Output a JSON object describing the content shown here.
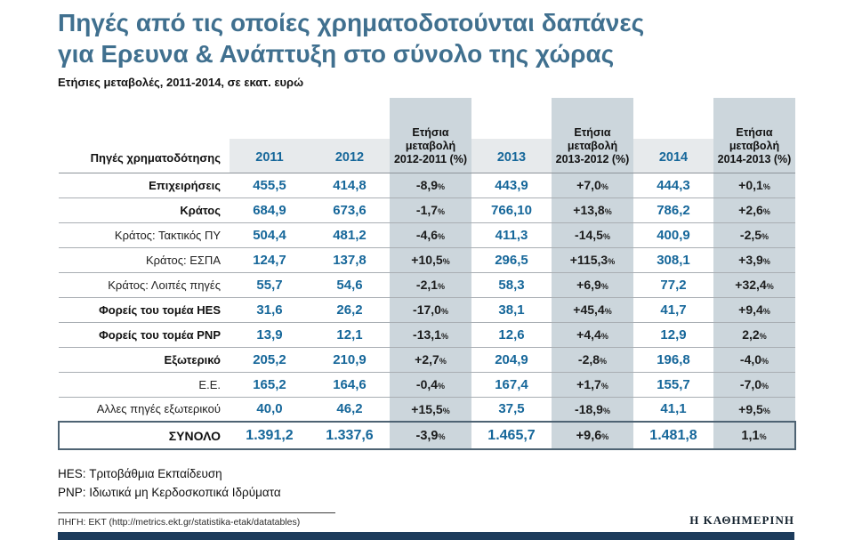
{
  "header": {
    "title_line1": "Πηγές από τις οποίες χρηματοδοτούνται δαπάνες",
    "title_line2": "για Ερευνα & Ανάπτυξη στο σύνολο της χώρας",
    "subtitle": "Ετήσιες μεταβολές, 2011-2014, σε εκατ. ευρώ"
  },
  "chart_data": {
    "type": "table",
    "title": "Πηγές από τις οποίες χρηματοδοτούνται δαπάνες για Ερευνα & Ανάπτυξη στο σύνολο της χώρας",
    "subtitle": "Ετήσιες μεταβολές, 2011-2014, σε εκατ. ευρώ",
    "unit": "εκατ. ευρώ",
    "columns": [
      {
        "label": "Πηγές χρηματοδότησης",
        "kind": "label"
      },
      {
        "label": "2011",
        "kind": "year"
      },
      {
        "label": "2012",
        "kind": "year"
      },
      {
        "label": "Ετήσια μεταβολή 2012-2011 (%)",
        "kind": "change"
      },
      {
        "label": "2013",
        "kind": "year"
      },
      {
        "label": "Ετήσια μεταβολή 2013-2012 (%)",
        "kind": "change"
      },
      {
        "label": "2014",
        "kind": "year"
      },
      {
        "label": "Ετήσια μεταβολή 2014-2013 (%)",
        "kind": "change"
      }
    ],
    "rows": [
      {
        "label": "Επιχειρήσεις",
        "bold": true,
        "total": false,
        "values": [
          "455,5",
          "414,8",
          "-8,9%",
          "443,9",
          "+7,0%",
          "444,3",
          "+0,1%"
        ]
      },
      {
        "label": "Κράτος",
        "bold": true,
        "total": false,
        "values": [
          "684,9",
          "673,6",
          "-1,7%",
          "766,10",
          "+13,8%",
          "786,2",
          "+2,6%"
        ]
      },
      {
        "label": "Κράτος: Τακτικός ΠΥ",
        "bold": false,
        "total": false,
        "values": [
          "504,4",
          "481,2",
          "-4,6%",
          "411,3",
          "-14,5%",
          "400,9",
          "-2,5%"
        ]
      },
      {
        "label": "Κράτος: ΕΣΠΑ",
        "bold": false,
        "total": false,
        "values": [
          "124,7",
          "137,8",
          "+10,5%",
          "296,5",
          "+115,3%",
          "308,1",
          "+3,9%"
        ]
      },
      {
        "label": "Κράτος: Λοιπές πηγές",
        "bold": false,
        "total": false,
        "values": [
          "55,7",
          "54,6",
          "-2,1%",
          "58,3",
          "+6,9%",
          "77,2",
          "+32,4%"
        ]
      },
      {
        "label": "Φορείς του τομέα HES",
        "bold": true,
        "total": false,
        "values": [
          "31,6",
          "26,2",
          "-17,0%",
          "38,1",
          "+45,4%",
          "41,7",
          "+9,4%"
        ]
      },
      {
        "label": "Φορείς του τομέα PNP",
        "bold": true,
        "total": false,
        "values": [
          "13,9",
          "12,1",
          "-13,1%",
          "12,6",
          "+4,4%",
          "12,9",
          "2,2%"
        ]
      },
      {
        "label": "Εξωτερικό",
        "bold": true,
        "total": false,
        "values": [
          "205,2",
          "210,9",
          "+2,7%",
          "204,9",
          "-2,8%",
          "196,8",
          "-4,0%"
        ]
      },
      {
        "label": "Ε.Ε.",
        "bold": false,
        "total": false,
        "values": [
          "165,2",
          "164,6",
          "-0,4%",
          "167,4",
          "+1,7%",
          "155,7",
          "-7,0%"
        ]
      },
      {
        "label": "Αλλες πηγές εξωτερικού",
        "bold": false,
        "total": false,
        "values": [
          "40,0",
          "46,2",
          "+15,5%",
          "37,5",
          "-18,9%",
          "41,1",
          "+9,5%"
        ]
      },
      {
        "label": "ΣΥΝΟΛΟ",
        "bold": true,
        "total": true,
        "values": [
          "1.391,2",
          "1.337,6",
          "-3,9%",
          "1.465,7",
          "+9,6%",
          "1.481,8",
          "1,1%"
        ]
      }
    ]
  },
  "notes": {
    "line1": "HES: Τριτοβάθμια Εκπαίδευση",
    "line2": "PNP: Ιδιωτικά μη Κερδοσκοπικά Ιδρύματα"
  },
  "footer": {
    "source": "ΠΗΓΗ: ΕΚΤ (http://metrics.ekt.gr/statistika-etak/datatables)",
    "brand": "Η ΚΑΘΗΜΕΡΙΝΗ"
  },
  "colors": {
    "title_blue": "#40708f",
    "value_blue": "#16679a",
    "change_col_bg": "#ccd6dc",
    "total_border": "#4e6373",
    "bottom_bar": "#1d3c5c"
  }
}
